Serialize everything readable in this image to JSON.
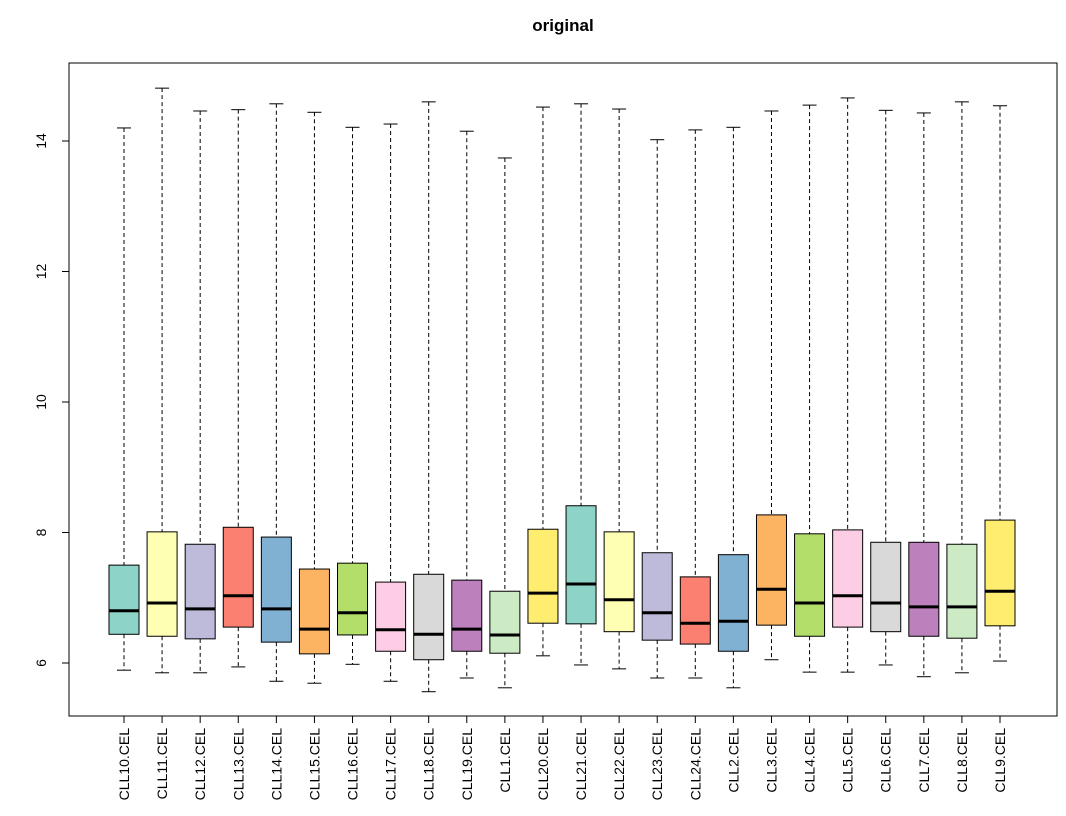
{
  "chart_data": {
    "type": "boxplot",
    "title": "original",
    "xlabel": "",
    "ylabel": "",
    "ylim": [
      5.35,
      15.05
    ],
    "yticks": [
      6,
      8,
      10,
      12,
      14
    ],
    "ytick_labels": [
      "6",
      "8",
      "10",
      "12",
      "14"
    ],
    "grid": false,
    "legend": "none",
    "categories": [
      "CLL10.CEL",
      "CLL11.CEL",
      "CLL12.CEL",
      "CLL13.CEL",
      "CLL14.CEL",
      "CLL15.CEL",
      "CLL16.CEL",
      "CLL17.CEL",
      "CLL18.CEL",
      "CLL19.CEL",
      "CLL1.CEL",
      "CLL20.CEL",
      "CLL21.CEL",
      "CLL22.CEL",
      "CLL23.CEL",
      "CLL24.CEL",
      "CLL2.CEL",
      "CLL3.CEL",
      "CLL4.CEL",
      "CLL5.CEL",
      "CLL6.CEL",
      "CLL7.CEL",
      "CLL8.CEL",
      "CLL9.CEL"
    ],
    "colors": [
      "#8DD3C7",
      "#FFFFB3",
      "#BEBADA",
      "#FB8072",
      "#80B1D3",
      "#FDB462",
      "#B3DE69",
      "#FCCDE5",
      "#D9D9D9",
      "#BC80BD",
      "#CCEBC5",
      "#FFED6F"
    ],
    "boxes": [
      {
        "min": 5.89,
        "q1": 6.44,
        "median": 6.8,
        "q3": 7.5,
        "max": 14.2
      },
      {
        "min": 5.85,
        "q1": 6.41,
        "median": 6.92,
        "q3": 8.01,
        "max": 14.81
      },
      {
        "min": 5.85,
        "q1": 6.37,
        "median": 6.83,
        "q3": 7.82,
        "max": 14.46
      },
      {
        "min": 5.94,
        "q1": 6.55,
        "median": 7.03,
        "q3": 8.08,
        "max": 14.48
      },
      {
        "min": 5.72,
        "q1": 6.32,
        "median": 6.83,
        "q3": 7.93,
        "max": 14.57
      },
      {
        "min": 5.69,
        "q1": 6.14,
        "median": 6.52,
        "q3": 7.44,
        "max": 14.44
      },
      {
        "min": 5.98,
        "q1": 6.43,
        "median": 6.77,
        "q3": 7.53,
        "max": 14.21
      },
      {
        "min": 5.72,
        "q1": 6.18,
        "median": 6.51,
        "q3": 7.24,
        "max": 14.26
      },
      {
        "min": 5.56,
        "q1": 6.05,
        "median": 6.44,
        "q3": 7.36,
        "max": 14.6
      },
      {
        "min": 5.77,
        "q1": 6.18,
        "median": 6.52,
        "q3": 7.27,
        "max": 14.15
      },
      {
        "min": 5.62,
        "q1": 6.15,
        "median": 6.43,
        "q3": 7.1,
        "max": 13.74
      },
      {
        "min": 6.11,
        "q1": 6.61,
        "median": 7.07,
        "q3": 8.05,
        "max": 14.52
      },
      {
        "min": 5.97,
        "q1": 6.6,
        "median": 7.21,
        "q3": 8.41,
        "max": 14.57
      },
      {
        "min": 5.91,
        "q1": 6.48,
        "median": 6.97,
        "q3": 8.01,
        "max": 14.49
      },
      {
        "min": 5.77,
        "q1": 6.35,
        "median": 6.77,
        "q3": 7.69,
        "max": 14.02
      },
      {
        "min": 5.77,
        "q1": 6.29,
        "median": 6.61,
        "q3": 7.32,
        "max": 14.17
      },
      {
        "min": 5.62,
        "q1": 6.18,
        "median": 6.64,
        "q3": 7.66,
        "max": 14.21
      },
      {
        "min": 6.05,
        "q1": 6.58,
        "median": 7.13,
        "q3": 8.27,
        "max": 14.46
      },
      {
        "min": 5.86,
        "q1": 6.41,
        "median": 6.92,
        "q3": 7.98,
        "max": 14.55
      },
      {
        "min": 5.86,
        "q1": 6.55,
        "median": 7.03,
        "q3": 8.04,
        "max": 14.66
      },
      {
        "min": 5.97,
        "q1": 6.48,
        "median": 6.92,
        "q3": 7.85,
        "max": 14.47
      },
      {
        "min": 5.79,
        "q1": 6.41,
        "median": 6.86,
        "q3": 7.85,
        "max": 14.43
      },
      {
        "min": 5.85,
        "q1": 6.38,
        "median": 6.86,
        "q3": 7.82,
        "max": 14.6
      },
      {
        "min": 6.03,
        "q1": 6.57,
        "median": 7.1,
        "q3": 8.19,
        "max": 14.54
      }
    ]
  }
}
